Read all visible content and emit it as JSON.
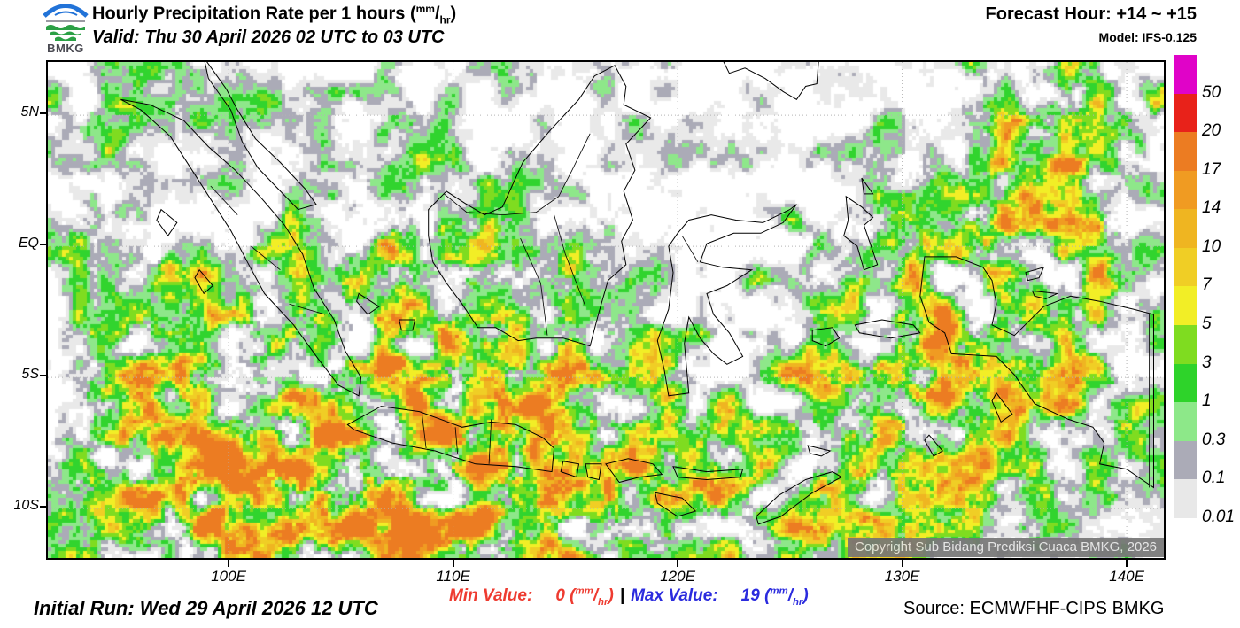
{
  "header": {
    "logo_text": "BMKG",
    "title_prefix": "Hourly Precipitation Rate per 1 hours (",
    "title_unit_sup": "mm",
    "title_unit_slash": "/",
    "title_unit_sub": "hr",
    "title_suffix": ")",
    "valid_line": "Valid: Thu 30 April 2026 02 UTC to 03 UTC",
    "forecast_hour": "Forecast Hour: +14 ~ +15",
    "model": "Model: IFS-0.125"
  },
  "map": {
    "copyright": "Copyright Sub Bidang Prediksi Cuaca BMKG, 2026",
    "copyright_bg": "#767676",
    "copyright_text_color": "#E4E4E4",
    "lat_labels": [
      {
        "label": "5N",
        "lat": 5
      },
      {
        "label": "EQ",
        "lat": 0
      },
      {
        "label": "5S",
        "lat": -5
      },
      {
        "label": "10S",
        "lat": -10
      }
    ],
    "lon_labels": [
      {
        "label": "100E",
        "lon": 100
      },
      {
        "label": "110E",
        "lon": 110
      },
      {
        "label": "120E",
        "lon": 120
      },
      {
        "label": "130E",
        "lon": 130
      },
      {
        "label": "140E",
        "lon": 140
      }
    ],
    "palette": [
      "#FFFFFF",
      "#E9E9E9",
      "#ABABB7",
      "#8EE78A",
      "#31D42E",
      "#7FDC20",
      "#F2EE26",
      "#F0CE25",
      "#EFB521",
      "#F09B22",
      "#EC7C22"
    ]
  },
  "colorbar": {
    "levels": [
      {
        "label": "50",
        "color": "#E003C8"
      },
      {
        "label": "20",
        "color": "#E8221A"
      },
      {
        "label": "17",
        "color": "#EC7C22"
      },
      {
        "label": "14",
        "color": "#F09B22"
      },
      {
        "label": "10",
        "color": "#EFB521"
      },
      {
        "label": "7",
        "color": "#F0CE25"
      },
      {
        "label": "5",
        "color": "#F2EE26"
      },
      {
        "label": "3",
        "color": "#7FDC20"
      },
      {
        "label": "1",
        "color": "#2ED32A"
      },
      {
        "label": "0.3",
        "color": "#8DE889"
      },
      {
        "label": "0.1",
        "color": "#ABABB7"
      },
      {
        "label": "0.01",
        "color": "#E8E8E8"
      }
    ]
  },
  "footer": {
    "initial_run": "Initial Run: Wed 29 April 2026 12 UTC",
    "min_label": "Min Value:",
    "min_value": "0",
    "max_label": "Max Value:",
    "max_value": "19",
    "separator": "|",
    "unit_open": "(",
    "unit_sup": "mm",
    "unit_slash": "/",
    "unit_sub": "hr",
    "unit_close": ")",
    "min_color": "#EE3B30",
    "max_color": "#2B2BDE",
    "source": "Source: ECMWFHF-CIPS BMKG"
  }
}
